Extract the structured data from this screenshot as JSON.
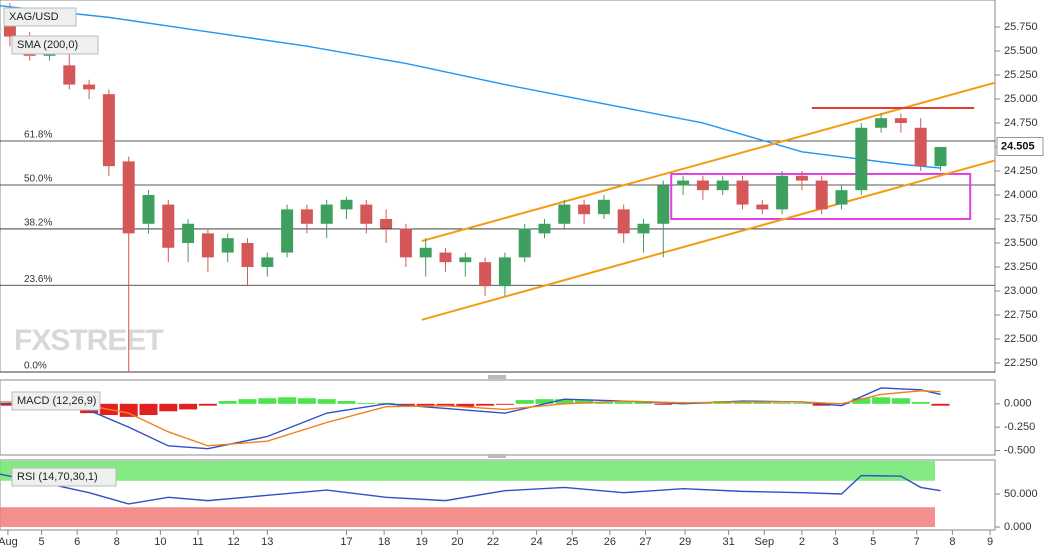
{
  "chart_data": [
    {
      "type": "candlestick",
      "title": "XAG/USD",
      "xlim": [
        -0.5,
        49.5
      ],
      "ylim": [
        22.156,
        26.031
      ],
      "x": [
        0,
        1,
        2,
        3,
        4,
        5,
        6,
        7,
        8,
        9,
        10,
        11,
        12,
        13,
        14,
        15,
        16,
        17,
        18,
        19,
        20,
        21,
        22,
        23,
        24,
        25,
        26,
        27,
        28,
        29,
        30,
        31,
        32,
        33,
        34,
        35,
        36,
        37,
        38,
        39,
        40,
        41,
        42,
        43,
        44,
        45,
        46,
        47
      ],
      "open": [
        25.85,
        25.6,
        25.45,
        25.35,
        25.15,
        25.05,
        24.35,
        23.7,
        23.9,
        23.5,
        23.6,
        23.4,
        23.5,
        23.25,
        23.4,
        23.85,
        23.7,
        23.85,
        23.9,
        23.75,
        23.65,
        23.35,
        23.4,
        23.3,
        23.3,
        23.05,
        23.35,
        23.6,
        23.7,
        23.9,
        23.8,
        23.85,
        23.6,
        23.7,
        24.1,
        24.15,
        24.05,
        24.15,
        23.9,
        23.85,
        24.2,
        24.15,
        23.9,
        24.05,
        24.7,
        24.8,
        24.7,
        24.3
      ],
      "high": [
        26.0,
        25.7,
        25.6,
        25.5,
        25.2,
        25.1,
        24.4,
        24.05,
        23.95,
        23.75,
        23.65,
        23.6,
        23.55,
        23.4,
        23.9,
        23.9,
        23.95,
        23.98,
        23.95,
        23.85,
        23.7,
        23.55,
        23.45,
        23.4,
        23.35,
        23.4,
        23.7,
        23.75,
        23.95,
        23.95,
        24.0,
        23.9,
        23.75,
        24.15,
        24.2,
        24.2,
        24.2,
        24.2,
        23.95,
        24.25,
        24.25,
        24.2,
        24.1,
        24.75,
        24.85,
        24.85,
        24.8,
        24.5
      ],
      "low": [
        25.55,
        25.4,
        25.4,
        25.1,
        25.0,
        24.2,
        22.15,
        23.6,
        23.3,
        23.3,
        23.2,
        23.3,
        23.05,
        23.15,
        23.35,
        23.6,
        23.55,
        23.75,
        23.6,
        23.5,
        23.25,
        23.15,
        23.2,
        23.15,
        22.95,
        22.95,
        23.3,
        23.55,
        23.65,
        23.7,
        23.75,
        23.5,
        23.4,
        23.35,
        24.0,
        23.95,
        24.0,
        23.85,
        23.8,
        23.8,
        24.05,
        23.8,
        23.85,
        24.0,
        24.65,
        24.65,
        24.25,
        24.25
      ],
      "close": [
        25.65,
        25.45,
        25.5,
        25.15,
        25.1,
        24.3,
        23.6,
        24.0,
        23.45,
        23.7,
        23.35,
        23.55,
        23.25,
        23.35,
        23.85,
        23.7,
        23.9,
        23.95,
        23.7,
        23.65,
        23.35,
        23.45,
        23.3,
        23.35,
        23.05,
        23.35,
        23.65,
        23.7,
        23.9,
        23.8,
        23.95,
        23.6,
        23.7,
        24.1,
        24.15,
        24.05,
        24.15,
        23.9,
        23.85,
        24.2,
        24.15,
        23.85,
        24.05,
        24.7,
        24.8,
        24.75,
        24.3,
        24.5
      ],
      "up_color": "#3f9f5f",
      "down_color": "#d45858",
      "series": [
        {
          "name": "SMA (200,0)",
          "color": "#2196f3",
          "x": [
            -0.5,
            5,
            10,
            15,
            20,
            25,
            30,
            35,
            40,
            45,
            47
          ],
          "values": [
            25.97,
            25.85,
            25.7,
            25.55,
            25.37,
            25.15,
            24.95,
            24.75,
            24.45,
            24.32,
            24.28
          ]
        }
      ],
      "yticks": [
        {
          "value": 22.25,
          "label": "22.250"
        },
        {
          "value": 22.5,
          "label": "22.500"
        },
        {
          "value": 22.75,
          "label": "22.750"
        },
        {
          "value": 23.0,
          "label": "23.000"
        },
        {
          "value": 23.25,
          "label": "23.250"
        },
        {
          "value": 23.5,
          "label": "23.500"
        },
        {
          "value": 23.75,
          "label": "23.750"
        },
        {
          "value": 24.0,
          "label": "24.000"
        },
        {
          "value": 24.25,
          "label": "24.250"
        },
        {
          "value": 24.5,
          "label": "24.500"
        },
        {
          "value": 24.75,
          "label": "24.750"
        },
        {
          "value": 25.0,
          "label": "25.000"
        },
        {
          "value": 25.25,
          "label": "25.250"
        },
        {
          "value": 25.5,
          "label": "25.500"
        },
        {
          "value": 25.75,
          "label": "25.750"
        }
      ],
      "xticks": [
        {
          "value": -0.1,
          "label": "Aug"
        },
        {
          "value": 1.6,
          "label": "5"
        },
        {
          "value": 3.4,
          "label": "6"
        },
        {
          "value": 5.4,
          "label": "8"
        },
        {
          "value": 7.6,
          "label": "10"
        },
        {
          "value": 9.5,
          "label": "11"
        },
        {
          "value": 11.3,
          "label": "12"
        },
        {
          "value": 13.0,
          "label": "13"
        },
        {
          "value": 17.0,
          "label": "17"
        },
        {
          "value": 18.9,
          "label": "18"
        },
        {
          "value": 20.8,
          "label": "19"
        },
        {
          "value": 22.6,
          "label": "20"
        },
        {
          "value": 24.4,
          "label": "22"
        },
        {
          "value": 26.6,
          "label": "24"
        },
        {
          "value": 28.4,
          "label": "25"
        },
        {
          "value": 30.3,
          "label": "26"
        },
        {
          "value": 32.1,
          "label": "27"
        },
        {
          "value": 34.1,
          "label": "29"
        },
        {
          "value": 36.3,
          "label": "31"
        },
        {
          "value": 38.1,
          "label": "Sep"
        },
        {
          "value": 40.0,
          "label": "2"
        },
        {
          "value": 41.7,
          "label": "3"
        },
        {
          "value": 43.6,
          "label": "5"
        },
        {
          "value": 45.8,
          "label": "7"
        },
        {
          "value": 47.6,
          "label": "8"
        },
        {
          "value": 49.5,
          "label": "9"
        }
      ],
      "fib_levels": [
        {
          "label": "61.8%",
          "value": 24.5625
        },
        {
          "label": "50.0%",
          "value": 24.104
        },
        {
          "label": "38.2%",
          "value": 23.646
        },
        {
          "label": "23.6%",
          "value": 23.06
        },
        {
          "label": "0.0%",
          "value": 22.156
        }
      ],
      "last_price": 24.505,
      "watermark": "FXSTREET",
      "trendlines": [
        {
          "color": "#f39c12",
          "x": [
            20.8,
            49.75
          ],
          "y": [
            23.52,
            25.17
          ]
        },
        {
          "color": "#f39c12",
          "x": [
            20.8,
            49.75
          ],
          "y": [
            22.7,
            24.36
          ]
        },
        {
          "color": "#e53935",
          "x": [
            40.5,
            48.7
          ],
          "y": [
            24.906,
            24.906
          ]
        }
      ],
      "zones": [
        {
          "color": "#e040e0",
          "x": [
            33.4,
            48.5
          ],
          "y": [
            23.75,
            24.219
          ]
        }
      ]
    },
    {
      "type": "macd",
      "title": "MACD (12,26,9)",
      "xlim": [
        -0.5,
        49.5
      ],
      "ylim": [
        -0.548,
        0.255
      ],
      "yticks": [
        {
          "value": 0,
          "label": "0.000"
        },
        {
          "value": -0.25,
          "label": "-0.250"
        },
        {
          "value": -0.5,
          "label": "-0.500"
        }
      ],
      "up_color": "#4ce34c",
      "down_color": "#e32020",
      "histogram": [
        -0.02,
        -0.02,
        -0.02,
        -0.03,
        -0.1,
        -0.12,
        -0.14,
        -0.12,
        -0.08,
        -0.06,
        -0.02,
        0.03,
        0.05,
        0.06,
        0.07,
        0.06,
        0.05,
        0.03,
        0.01,
        0.01,
        -0.02,
        -0.03,
        -0.03,
        -0.03,
        -0.02,
        -0.01,
        0.04,
        0.05,
        0.05,
        0.04,
        0.02,
        0.02,
        0.02,
        -0.01,
        0.02,
        0.02,
        0.03,
        0.02,
        0.02,
        0.01,
        0.01,
        -0.02,
        0.01,
        0.06,
        0.07,
        0.06,
        0.02,
        -0.02
      ],
      "series": [
        {
          "color": "#3050c8",
          "x": [
            -0.5,
            3,
            6,
            8,
            10,
            13,
            16,
            19,
            22,
            25,
            28,
            31,
            34,
            37,
            40,
            42,
            44,
            46,
            47
          ],
          "values": [
            0,
            0.02,
            -0.25,
            -0.45,
            -0.48,
            -0.35,
            -0.1,
            0.0,
            -0.05,
            -0.1,
            0.05,
            0.03,
            0.0,
            0.03,
            0.02,
            -0.02,
            0.17,
            0.15,
            0.1
          ]
        },
        {
          "color": "#f08020",
          "x": [
            -0.5,
            3,
            6,
            8,
            10,
            13,
            16,
            19,
            22,
            25,
            28,
            31,
            34,
            37,
            40,
            42,
            44,
            46,
            47
          ],
          "values": [
            0.02,
            0.02,
            -0.1,
            -0.3,
            -0.45,
            -0.4,
            -0.2,
            -0.03,
            -0.02,
            -0.06,
            0.0,
            0.03,
            0.01,
            0.02,
            0.02,
            0.0,
            0.1,
            0.14,
            0.13
          ]
        }
      ]
    },
    {
      "type": "rsi",
      "title": "RSI (14,70,30,1)",
      "xlim": [
        -0.5,
        49.5
      ],
      "ylim": [
        -4.5,
        101.5
      ],
      "yticks": [
        {
          "value": 50,
          "label": "50.000"
        },
        {
          "value": 0,
          "label": "0.000"
        }
      ],
      "bands": [
        {
          "from": 70,
          "to": 100,
          "color": "#6fe86f"
        },
        {
          "from": 0,
          "to": 30,
          "color": "#f07c7c"
        }
      ],
      "series": [
        {
          "color": "#3050c8",
          "x": [
            -0.5,
            2,
            4,
            6,
            8,
            10,
            13,
            16,
            19,
            22,
            25,
            28,
            31,
            34,
            37,
            40,
            42,
            43,
            45,
            46,
            47
          ],
          "values": [
            80,
            65,
            52,
            35,
            45,
            40,
            48,
            56,
            45,
            40,
            55,
            60,
            52,
            58,
            54,
            52,
            50,
            78,
            77,
            60,
            55
          ]
        }
      ]
    }
  ]
}
